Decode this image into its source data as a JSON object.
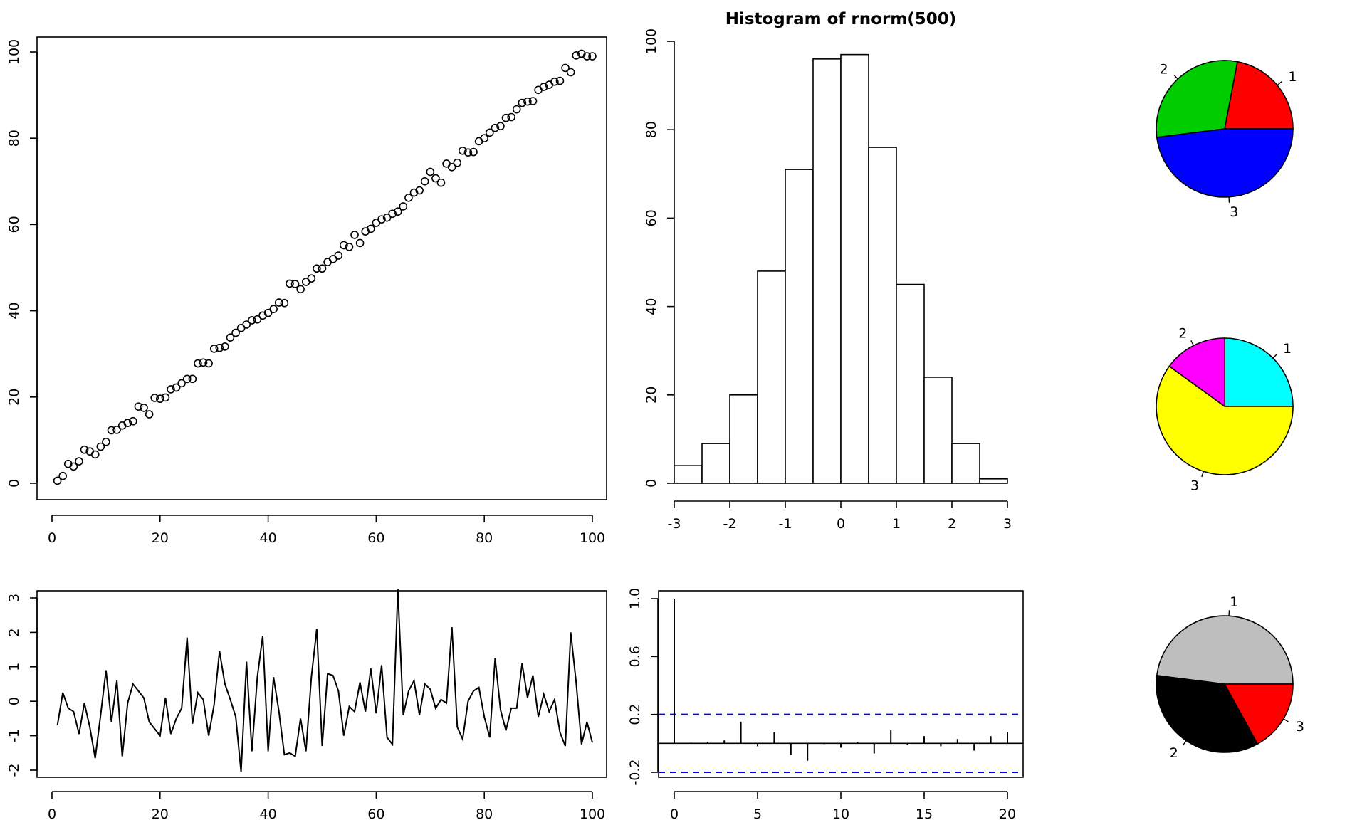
{
  "chart_data": [
    {
      "id": "scatter",
      "type": "scatter",
      "title": "",
      "xlabel": "",
      "ylabel": "",
      "xlim": [
        0,
        100
      ],
      "ylim": [
        0,
        100
      ],
      "x_ticks": [
        "0",
        "20",
        "40",
        "60",
        "80",
        "100"
      ],
      "y_ticks": [
        "0",
        "20",
        "40",
        "60",
        "80",
        "100"
      ],
      "x": [
        1,
        2,
        3,
        4,
        5,
        6,
        7,
        8,
        9,
        10,
        11,
        12,
        13,
        14,
        15,
        16,
        17,
        18,
        19,
        20,
        21,
        22,
        23,
        24,
        25,
        26,
        27,
        28,
        29,
        30,
        31,
        32,
        33,
        34,
        35,
        36,
        37,
        38,
        39,
        40,
        41,
        42,
        43,
        44,
        45,
        46,
        47,
        48,
        49,
        50,
        51,
        52,
        53,
        54,
        55,
        56,
        57,
        58,
        59,
        60,
        61,
        62,
        63,
        64,
        65,
        66,
        67,
        68,
        69,
        70,
        71,
        72,
        73,
        74,
        75,
        76,
        77,
        78,
        79,
        80,
        81,
        82,
        83,
        84,
        85,
        86,
        87,
        88,
        89,
        90,
        91,
        92,
        93,
        94,
        95,
        96,
        97,
        98,
        99,
        100
      ],
      "y": [
        0.6,
        1.7,
        4.5,
        3.9,
        5.1,
        7.8,
        7.4,
        6.7,
        8.5,
        9.6,
        12.3,
        12.4,
        13.4,
        14.0,
        14.4,
        17.8,
        17.5,
        16.0,
        19.8,
        19.6,
        19.9,
        21.8,
        22.2,
        23.2,
        24.2,
        24.2,
        27.8,
        28.0,
        27.8,
        31.2,
        31.4,
        31.7,
        33.8,
        34.9,
        36.0,
        36.8,
        37.8,
        38.0,
        38.9,
        39.5,
        40.4,
        41.9,
        41.8,
        46.3,
        46.2,
        45.0,
        46.7,
        47.5,
        49.8,
        49.8,
        51.3,
        52.0,
        52.8,
        55.2,
        54.8,
        57.6,
        55.7,
        58.4,
        59.0,
        60.4,
        61.2,
        61.6,
        62.5,
        63.0,
        64.2,
        66.2,
        67.4,
        67.9,
        70.0,
        72.2,
        70.7,
        69.7,
        74.1,
        73.3,
        74.3,
        77.1,
        76.7,
        76.8,
        79.3,
        80.0,
        81.3,
        82.4,
        82.8,
        84.7,
        84.9,
        86.7,
        88.2,
        88.5,
        88.6,
        91.2,
        91.9,
        92.4,
        93.1,
        93.3,
        96.3,
        95.3,
        99.2,
        99.6,
        99.0,
        99.0
      ]
    },
    {
      "id": "histogram",
      "type": "bar",
      "title": "Histogram of rnorm(500)",
      "xlabel": "",
      "ylabel": "",
      "xlim": [
        -3,
        3
      ],
      "ylim": [
        0,
        100
      ],
      "x_ticks": [
        "-3",
        "-2",
        "-1",
        "0",
        "1",
        "2",
        "3"
      ],
      "y_ticks": [
        "0",
        "20",
        "40",
        "60",
        "80",
        "100"
      ],
      "bin_edges": [
        -3,
        -2.5,
        -2,
        -1.5,
        -1,
        -0.5,
        0,
        0.5,
        1,
        1.5,
        2,
        2.5,
        3
      ],
      "values": [
        4,
        9,
        20,
        48,
        71,
        96,
        97,
        76,
        45,
        24,
        9,
        1
      ]
    },
    {
      "id": "pie1",
      "type": "pie",
      "labels": [
        "1",
        "2",
        "3"
      ],
      "values": [
        22,
        30,
        48
      ],
      "colors": [
        "#ff0000",
        "#00cd00",
        "#0000ff"
      ]
    },
    {
      "id": "pie2",
      "type": "pie",
      "labels": [
        "1",
        "2",
        "3"
      ],
      "values": [
        25,
        15,
        60
      ],
      "colors": [
        "#00ffff",
        "#ff00ff",
        "#ffff00"
      ]
    },
    {
      "id": "lineplot",
      "type": "line",
      "title": "",
      "xlabel": "",
      "ylabel": "",
      "xlim": [
        0,
        100
      ],
      "ylim": [
        -2,
        3
      ],
      "x_ticks": [
        "0",
        "20",
        "40",
        "60",
        "80",
        "100"
      ],
      "y_ticks": [
        "-2",
        "-1",
        "0",
        "1",
        "2",
        "3"
      ],
      "x": [
        1,
        2,
        3,
        4,
        5,
        6,
        7,
        8,
        9,
        10,
        11,
        12,
        13,
        14,
        15,
        16,
        17,
        18,
        19,
        20,
        21,
        22,
        23,
        24,
        25,
        26,
        27,
        28,
        29,
        30,
        31,
        32,
        33,
        34,
        35,
        36,
        37,
        38,
        39,
        40,
        41,
        42,
        43,
        44,
        45,
        46,
        47,
        48,
        49,
        50,
        51,
        52,
        53,
        54,
        55,
        56,
        57,
        58,
        59,
        60,
        61,
        62,
        63,
        64,
        65,
        66,
        67,
        68,
        69,
        70,
        71,
        72,
        73,
        74,
        75,
        76,
        77,
        78,
        79,
        80,
        81,
        82,
        83,
        84,
        85,
        86,
        87,
        88,
        89,
        90,
        91,
        92,
        93,
        94,
        95,
        96,
        97,
        98,
        99,
        100
      ],
      "y": [
        -0.7,
        0.25,
        -0.2,
        -0.3,
        -0.95,
        -0.05,
        -0.75,
        -1.65,
        -0.4,
        0.9,
        -0.6,
        0.6,
        -1.6,
        -0.05,
        0.5,
        0.3,
        0.1,
        -0.6,
        -0.8,
        -1.0,
        0.1,
        -0.95,
        -0.5,
        -0.2,
        1.85,
        -0.65,
        0.25,
        0.05,
        -1.0,
        -0.1,
        1.45,
        0.5,
        0.05,
        -0.45,
        -2.05,
        1.15,
        -1.45,
        0.7,
        1.9,
        -1.45,
        0.7,
        -0.3,
        -1.55,
        -1.5,
        -1.6,
        -0.5,
        -1.45,
        0.7,
        2.1,
        -1.3,
        0.8,
        0.75,
        0.3,
        -1.0,
        -0.15,
        -0.3,
        0.55,
        -0.3,
        0.95,
        -0.35,
        1.05,
        -1.05,
        -1.25,
        3.25,
        -0.4,
        0.3,
        0.6,
        -0.4,
        0.5,
        0.35,
        -0.2,
        0.05,
        -0.05,
        2.15,
        -0.75,
        -1.1,
        0.0,
        0.3,
        0.4,
        -0.45,
        -1.05,
        1.25,
        -0.25,
        -0.85,
        -0.2,
        -0.2,
        1.1,
        0.1,
        0.75,
        -0.45,
        0.2,
        -0.3,
        0.05,
        -0.9,
        -1.3,
        2.0,
        0.55,
        -1.25,
        -0.6,
        -1.2
      ]
    },
    {
      "id": "acf",
      "type": "bar",
      "title": "",
      "xlabel": "",
      "ylabel": "",
      "xlim": [
        0,
        20
      ],
      "ylim": [
        -0.2,
        1.0
      ],
      "x_ticks": [
        "0",
        "5",
        "10",
        "15",
        "20"
      ],
      "y_ticks": [
        "-0.2",
        "0.2",
        "0.6",
        "1.0"
      ],
      "lags": [
        0,
        1,
        2,
        3,
        4,
        5,
        6,
        7,
        8,
        9,
        10,
        11,
        12,
        13,
        14,
        15,
        16,
        17,
        18,
        19,
        20
      ],
      "values": [
        1.0,
        0.005,
        0.01,
        0.02,
        0.15,
        -0.02,
        0.08,
        -0.08,
        -0.12,
        -0.005,
        -0.03,
        0.01,
        -0.07,
        0.09,
        -0.01,
        0.05,
        -0.02,
        0.03,
        -0.05,
        0.05,
        0.08
      ],
      "ci": [
        0.2,
        -0.2
      ],
      "ci_color": "#0000ff"
    },
    {
      "id": "pie3",
      "type": "pie",
      "labels": [
        "1",
        "2",
        "3"
      ],
      "values": [
        48,
        35,
        17
      ],
      "colors": [
        "#bebebe",
        "#000000",
        "#ff0000"
      ]
    }
  ]
}
